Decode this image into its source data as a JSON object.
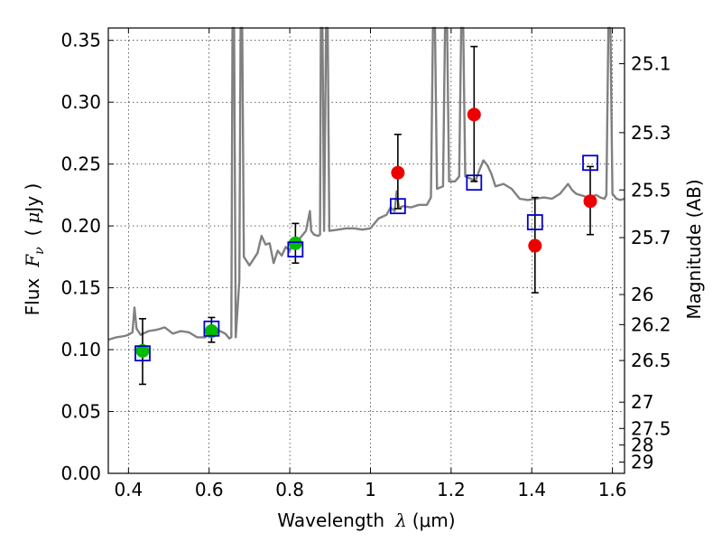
{
  "chart_data": {
    "type": "scatter",
    "xlabel": {
      "prefix": "Wavelength",
      "symbol": "λ",
      "unit": "(μm)"
    },
    "ylabel": {
      "prefix": "Flux",
      "symbol": "F",
      "subscript": "ν",
      "unit_open": "(",
      "unit_mu": "μ",
      "unit_rest": "Jy )"
    },
    "y2label": "Magnitude (AB)",
    "xlim": [
      0.35,
      1.63
    ],
    "ylim": [
      0.0,
      0.36
    ],
    "grid": true,
    "x_ticks": [
      0.4,
      0.6,
      0.8,
      1.0,
      1.2,
      1.4,
      1.6
    ],
    "x_tick_labels": [
      "0.4",
      "0.6",
      "0.8",
      "1",
      "1.2",
      "1.4",
      "1.6"
    ],
    "y_ticks": [
      0.0,
      0.05,
      0.1,
      0.15,
      0.2,
      0.25,
      0.3,
      0.35
    ],
    "y_tick_labels": [
      "0.00",
      "0.05",
      "0.10",
      "0.15",
      "0.20",
      "0.25",
      "0.30",
      "0.35"
    ],
    "mag_ticks": [
      "25.1",
      "25.3",
      "25.5",
      "25.7",
      "26",
      "26.2",
      "26.5",
      "27",
      "27.5",
      "28",
      "29"
    ],
    "colors": {
      "spectrum": "#808080",
      "optical_points": "#00bb00",
      "nir_points": "#ee0000",
      "model_squares": "#0000cc",
      "errorbar": "#000000"
    },
    "spectrum": [
      [
        0.35,
        0.108
      ],
      [
        0.37,
        0.11
      ],
      [
        0.39,
        0.111
      ],
      [
        0.4,
        0.112
      ],
      [
        0.41,
        0.114
      ],
      [
        0.415,
        0.134
      ],
      [
        0.42,
        0.117
      ],
      [
        0.43,
        0.112
      ],
      [
        0.45,
        0.115
      ],
      [
        0.47,
        0.116
      ],
      [
        0.49,
        0.118
      ],
      [
        0.51,
        0.113
      ],
      [
        0.53,
        0.115
      ],
      [
        0.55,
        0.114
      ],
      [
        0.57,
        0.11
      ],
      [
        0.59,
        0.11
      ],
      [
        0.6,
        0.112
      ],
      [
        0.62,
        0.116
      ],
      [
        0.64,
        0.113
      ],
      [
        0.65,
        0.109
      ],
      [
        0.655,
        0.11
      ],
      [
        0.658,
        0.36
      ],
      [
        0.662,
        0.36
      ],
      [
        0.666,
        0.11
      ],
      [
        0.675,
        0.156
      ],
      [
        0.678,
        0.36
      ],
      [
        0.682,
        0.36
      ],
      [
        0.686,
        0.175
      ],
      [
        0.7,
        0.168
      ],
      [
        0.72,
        0.178
      ],
      [
        0.73,
        0.192
      ],
      [
        0.74,
        0.185
      ],
      [
        0.75,
        0.186
      ],
      [
        0.76,
        0.17
      ],
      [
        0.77,
        0.18
      ],
      [
        0.78,
        0.176
      ],
      [
        0.79,
        0.183
      ],
      [
        0.8,
        0.18
      ],
      [
        0.81,
        0.186
      ],
      [
        0.82,
        0.188
      ],
      [
        0.83,
        0.192
      ],
      [
        0.84,
        0.196
      ],
      [
        0.85,
        0.212
      ],
      [
        0.853,
        0.196
      ],
      [
        0.86,
        0.193
      ],
      [
        0.87,
        0.192
      ],
      [
        0.875,
        0.193
      ],
      [
        0.877,
        0.36
      ],
      [
        0.881,
        0.36
      ],
      [
        0.885,
        0.196
      ],
      [
        0.89,
        0.36
      ],
      [
        0.894,
        0.36
      ],
      [
        0.898,
        0.196
      ],
      [
        0.92,
        0.197
      ],
      [
        0.94,
        0.198
      ],
      [
        0.96,
        0.198
      ],
      [
        0.98,
        0.197
      ],
      [
        1.0,
        0.198
      ],
      [
        1.02,
        0.206
      ],
      [
        1.04,
        0.209
      ],
      [
        1.05,
        0.215
      ],
      [
        1.06,
        0.212
      ],
      [
        1.065,
        0.228
      ],
      [
        1.07,
        0.216
      ],
      [
        1.075,
        0.215
      ],
      [
        1.08,
        0.216
      ],
      [
        1.1,
        0.215
      ],
      [
        1.12,
        0.217
      ],
      [
        1.14,
        0.217
      ],
      [
        1.15,
        0.223
      ],
      [
        1.155,
        0.36
      ],
      [
        1.16,
        0.36
      ],
      [
        1.165,
        0.23
      ],
      [
        1.18,
        0.232
      ],
      [
        1.185,
        0.36
      ],
      [
        1.19,
        0.36
      ],
      [
        1.195,
        0.236
      ],
      [
        1.21,
        0.236
      ],
      [
        1.22,
        0.24
      ],
      [
        1.225,
        0.36
      ],
      [
        1.23,
        0.36
      ],
      [
        1.235,
        0.24
      ],
      [
        1.25,
        0.238
      ],
      [
        1.26,
        0.236
      ],
      [
        1.27,
        0.245
      ],
      [
        1.28,
        0.253
      ],
      [
        1.29,
        0.249
      ],
      [
        1.3,
        0.242
      ],
      [
        1.31,
        0.232
      ],
      [
        1.33,
        0.234
      ],
      [
        1.35,
        0.23
      ],
      [
        1.37,
        0.222
      ],
      [
        1.39,
        0.221
      ],
      [
        1.41,
        0.222
      ],
      [
        1.43,
        0.223
      ],
      [
        1.45,
        0.222
      ],
      [
        1.47,
        0.226
      ],
      [
        1.48,
        0.23
      ],
      [
        1.49,
        0.234
      ],
      [
        1.5,
        0.229
      ],
      [
        1.51,
        0.226
      ],
      [
        1.52,
        0.225
      ],
      [
        1.53,
        0.224
      ],
      [
        1.54,
        0.222
      ],
      [
        1.55,
        0.224
      ],
      [
        1.56,
        0.225
      ],
      [
        1.57,
        0.223
      ],
      [
        1.58,
        0.222
      ],
      [
        1.585,
        0.225
      ],
      [
        1.59,
        0.36
      ],
      [
        1.595,
        0.36
      ],
      [
        1.6,
        0.226
      ],
      [
        1.61,
        0.222
      ],
      [
        1.62,
        0.221
      ],
      [
        1.63,
        0.222
      ]
    ],
    "optical_points": [
      {
        "x": 0.435,
        "y": 0.099,
        "err_lo": 0.027,
        "err_hi": 0.026
      },
      {
        "x": 0.606,
        "y": 0.115,
        "err_lo": 0.009,
        "err_hi": 0.011
      },
      {
        "x": 0.814,
        "y": 0.186,
        "err_lo": 0.016,
        "err_hi": 0.016
      }
    ],
    "nir_points": [
      {
        "x": 1.068,
        "y": 0.243,
        "err_lo": 0.029,
        "err_hi": 0.031
      },
      {
        "x": 1.257,
        "y": 0.29,
        "err_lo": 0.054,
        "err_hi": 0.055
      },
      {
        "x": 1.408,
        "y": 0.184,
        "err_lo": 0.038,
        "err_hi": 0.039
      },
      {
        "x": 1.545,
        "y": 0.22,
        "err_lo": 0.027,
        "err_hi": 0.028
      }
    ],
    "model_squares": [
      {
        "x": 0.435,
        "y": 0.097
      },
      {
        "x": 0.606,
        "y": 0.117
      },
      {
        "x": 0.814,
        "y": 0.181
      },
      {
        "x": 1.068,
        "y": 0.216
      },
      {
        "x": 1.257,
        "y": 0.235
      },
      {
        "x": 1.408,
        "y": 0.203
      },
      {
        "x": 1.545,
        "y": 0.251
      }
    ]
  }
}
